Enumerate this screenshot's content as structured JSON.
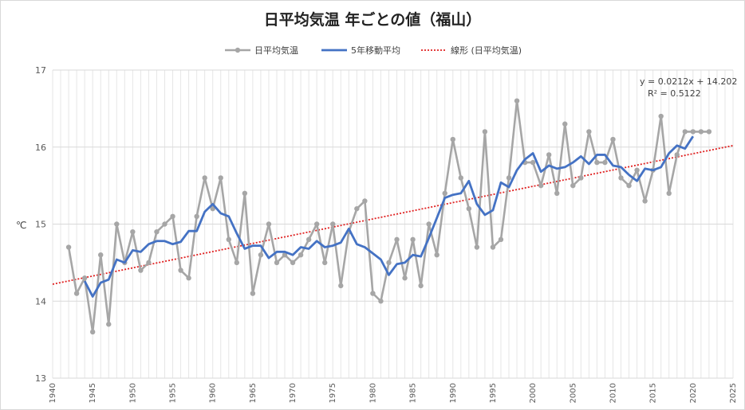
{
  "chart_data": {
    "type": "line",
    "title": "日平均気温 年ごとの値（福山）",
    "ylabel": "℃",
    "xlabel": "",
    "xlim": [
      1940,
      2025
    ],
    "ylim": [
      13,
      17
    ],
    "y_ticks": [
      "13",
      "14",
      "15",
      "16",
      "17"
    ],
    "x_ticks": [
      "1940",
      "1945",
      "1950",
      "1955",
      "1960",
      "1965",
      "1970",
      "1975",
      "1980",
      "1985",
      "1990",
      "1995",
      "2000",
      "2005",
      "2010",
      "2015",
      "2020",
      "2025"
    ],
    "grid": "vertical and horizontal",
    "legend_position": "top",
    "legend": [
      "日平均気温",
      "5年移動平均",
      "線形 (日平均気温)"
    ],
    "colors": {
      "series": "#a6a6a6",
      "moving_average": "#4472c4",
      "trend": "#e02020"
    },
    "series": [
      {
        "name": "日平均気温",
        "x": [
          1942,
          1943,
          1944,
          1945,
          1946,
          1947,
          1948,
          1949,
          1950,
          1951,
          1952,
          1953,
          1954,
          1955,
          1956,
          1957,
          1958,
          1959,
          1960,
          1961,
          1962,
          1963,
          1964,
          1965,
          1966,
          1967,
          1968,
          1969,
          1970,
          1971,
          1972,
          1973,
          1974,
          1975,
          1976,
          1977,
          1978,
          1979,
          1980,
          1981,
          1982,
          1983,
          1984,
          1985,
          1986,
          1987,
          1988,
          1989,
          1990,
          1991,
          1992,
          1993,
          1994,
          1995,
          1996,
          1997,
          1998,
          1999,
          2000,
          2001,
          2002,
          2003,
          2004,
          2005,
          2006,
          2007,
          2008,
          2009,
          2010,
          2011,
          2012,
          2013,
          2014,
          2015,
          2016,
          2017,
          2018,
          2019,
          2020,
          2021,
          2022
        ],
        "values": [
          14.7,
          14.1,
          14.3,
          13.6,
          14.6,
          13.7,
          15.0,
          14.5,
          14.9,
          14.4,
          14.5,
          14.9,
          15.0,
          15.1,
          14.4,
          14.3,
          15.1,
          15.6,
          15.2,
          15.6,
          14.8,
          14.5,
          15.4,
          14.1,
          14.6,
          15.0,
          14.5,
          14.6,
          14.5,
          14.6,
          14.8,
          15.0,
          14.5,
          15.0,
          14.2,
          14.9,
          15.2,
          15.3,
          14.1,
          14.0,
          14.5,
          14.8,
          14.3,
          14.8,
          14.2,
          15.0,
          14.6,
          15.4,
          16.1,
          15.6,
          15.2,
          14.7,
          16.2,
          14.7,
          14.8,
          15.6,
          16.6,
          15.8,
          15.8,
          15.5,
          15.9,
          15.4,
          16.3,
          15.5,
          15.6,
          16.2,
          15.8,
          15.8,
          16.1,
          15.6,
          15.5,
          15.7,
          15.3,
          15.7,
          16.4,
          15.4,
          15.9,
          16.2,
          16.2,
          16.2,
          16.2
        ]
      },
      {
        "name": "5年移動平均",
        "x": [
          1944,
          1945,
          1946,
          1947,
          1948,
          1949,
          1950,
          1951,
          1952,
          1953,
          1954,
          1955,
          1956,
          1957,
          1958,
          1959,
          1960,
          1961,
          1962,
          1963,
          1964,
          1965,
          1966,
          1967,
          1968,
          1969,
          1970,
          1971,
          1972,
          1973,
          1974,
          1975,
          1976,
          1977,
          1978,
          1979,
          1980,
          1981,
          1982,
          1983,
          1984,
          1985,
          1986,
          1987,
          1988,
          1989,
          1990,
          1991,
          1992,
          1993,
          1994,
          1995,
          1996,
          1997,
          1998,
          1999,
          2000,
          2001,
          2002,
          2003,
          2004,
          2005,
          2006,
          2007,
          2008,
          2009,
          2010,
          2011,
          2012,
          2013,
          2014,
          2015,
          2016,
          2017,
          2018,
          2019,
          2020
        ],
        "values": [
          14.26,
          14.06,
          14.24,
          14.28,
          14.54,
          14.5,
          14.66,
          14.64,
          14.74,
          14.78,
          14.78,
          14.74,
          14.77,
          14.91,
          14.91,
          15.16,
          15.26,
          15.14,
          15.1,
          14.88,
          14.68,
          14.72,
          14.72,
          14.56,
          14.64,
          14.64,
          14.6,
          14.7,
          14.68,
          14.78,
          14.7,
          14.72,
          14.76,
          14.94,
          14.74,
          14.7,
          14.62,
          14.54,
          14.34,
          14.48,
          14.5,
          14.6,
          14.58,
          14.82,
          15.08,
          15.34,
          15.38,
          15.4,
          15.56,
          15.26,
          15.12,
          15.18,
          15.54,
          15.48,
          15.7,
          15.84,
          15.92,
          15.68,
          15.76,
          15.72,
          15.74,
          15.8,
          15.88,
          15.78,
          15.9,
          15.9,
          15.76,
          15.74,
          15.64,
          15.56,
          15.72,
          15.7,
          15.74,
          15.92,
          16.02,
          15.98,
          16.14
        ]
      }
    ],
    "trendline": {
      "name": "線形 (日平均気温)",
      "equation": "y = 0.0212x + 14.202",
      "r2": "R² = 0.5122",
      "x_range": [
        1940,
        2025
      ],
      "y_range": [
        14.22,
        16.02
      ]
    }
  }
}
